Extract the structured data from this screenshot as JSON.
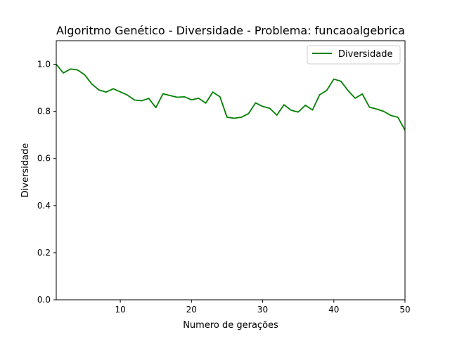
{
  "chart_data": {
    "type": "line",
    "title": "Algoritmo Genético - Diversidade - Problema: funcaoalgebrica",
    "xlabel": "Numero de gerações",
    "ylabel": "Diversidade",
    "xlim": [
      1,
      50
    ],
    "ylim": [
      0.0,
      1.1
    ],
    "xticks": [
      10,
      20,
      30,
      40,
      50
    ],
    "xtick_labels": [
      "10",
      "20",
      "30",
      "40",
      "50"
    ],
    "yticks": [
      0.0,
      0.2,
      0.4,
      0.6,
      0.8,
      1.0
    ],
    "ytick_labels": [
      "0.0",
      "0.2",
      "0.4",
      "0.6",
      "0.8",
      "1.0"
    ],
    "grid": false,
    "legend_position": "top-right",
    "series": [
      {
        "name": "Diversidade",
        "color": "#008000",
        "x": [
          1,
          2,
          3,
          4,
          5,
          6,
          7,
          8,
          9,
          10,
          11,
          12,
          13,
          14,
          15,
          16,
          17,
          18,
          19,
          20,
          21,
          22,
          23,
          24,
          25,
          26,
          27,
          28,
          29,
          30,
          31,
          32,
          33,
          34,
          35,
          36,
          37,
          38,
          39,
          40,
          41,
          42,
          43,
          44,
          45,
          46,
          47,
          48,
          49,
          50
        ],
        "values": [
          1.0,
          0.963,
          0.98,
          0.976,
          0.955,
          0.916,
          0.891,
          0.882,
          0.896,
          0.883,
          0.869,
          0.848,
          0.845,
          0.855,
          0.816,
          0.875,
          0.867,
          0.86,
          0.862,
          0.849,
          0.856,
          0.835,
          0.882,
          0.862,
          0.775,
          0.771,
          0.775,
          0.79,
          0.836,
          0.821,
          0.813,
          0.784,
          0.828,
          0.805,
          0.797,
          0.826,
          0.806,
          0.87,
          0.889,
          0.937,
          0.928,
          0.888,
          0.856,
          0.874,
          0.818,
          0.81,
          0.8,
          0.783,
          0.775,
          0.72
        ]
      }
    ]
  }
}
